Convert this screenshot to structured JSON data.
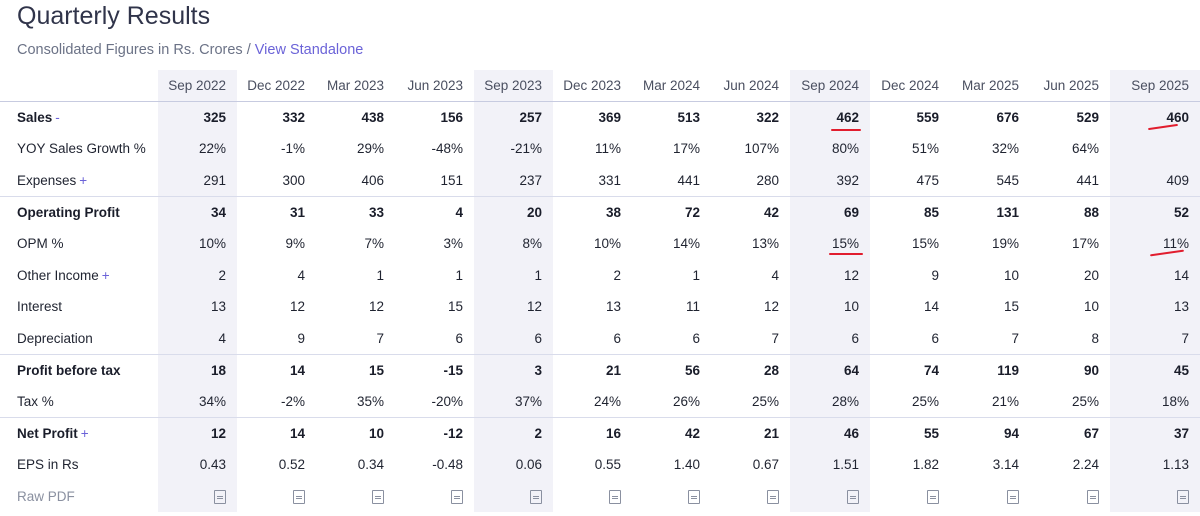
{
  "header": {
    "title": "Quarterly Results",
    "subtitle_text": "Consolidated Figures in Rs. Crores",
    "separator": "/",
    "link_label": "View Standalone"
  },
  "columns": [
    "Sep 2022",
    "Dec 2022",
    "Mar 2023",
    "Jun 2023",
    "Sep 2023",
    "Dec 2023",
    "Mar 2024",
    "Jun 2024",
    "Sep 2024",
    "Dec 2024",
    "Mar 2025",
    "Jun 2025",
    "Sep 2025"
  ],
  "rows": [
    {
      "label": "Sales",
      "toggle": "-",
      "strong": true,
      "values": [
        "325",
        "332",
        "438",
        "156",
        "257",
        "369",
        "513",
        "322",
        "462",
        "559",
        "676",
        "529",
        "460"
      ]
    },
    {
      "label": "YOY Sales Growth %",
      "toggle": "",
      "strong": false,
      "indent": true,
      "values": [
        "22%",
        "-1%",
        "29%",
        "-48%",
        "-21%",
        "11%",
        "17%",
        "107%",
        "80%",
        "51%",
        "32%",
        "64%",
        ""
      ]
    },
    {
      "label": "Expenses",
      "toggle": "+",
      "strong": false,
      "values": [
        "291",
        "300",
        "406",
        "151",
        "237",
        "331",
        "441",
        "280",
        "392",
        "475",
        "545",
        "441",
        "409"
      ]
    },
    {
      "label": "Operating Profit",
      "toggle": "",
      "strong": true,
      "values": [
        "34",
        "31",
        "33",
        "4",
        "20",
        "38",
        "72",
        "42",
        "69",
        "85",
        "131",
        "88",
        "52"
      ]
    },
    {
      "label": "OPM %",
      "toggle": "",
      "strong": false,
      "values": [
        "10%",
        "9%",
        "7%",
        "3%",
        "8%",
        "10%",
        "14%",
        "13%",
        "15%",
        "15%",
        "19%",
        "17%",
        "11%"
      ]
    },
    {
      "label": "Other Income",
      "toggle": "+",
      "strong": false,
      "values": [
        "2",
        "4",
        "1",
        "1",
        "1",
        "2",
        "1",
        "4",
        "12",
        "9",
        "10",
        "20",
        "14"
      ]
    },
    {
      "label": "Interest",
      "toggle": "",
      "strong": false,
      "values": [
        "13",
        "12",
        "12",
        "15",
        "12",
        "13",
        "11",
        "12",
        "10",
        "14",
        "15",
        "10",
        "13"
      ]
    },
    {
      "label": "Depreciation",
      "toggle": "",
      "strong": false,
      "values": [
        "4",
        "9",
        "7",
        "6",
        "6",
        "6",
        "6",
        "7",
        "6",
        "6",
        "7",
        "8",
        "7"
      ]
    },
    {
      "label": "Profit before tax",
      "toggle": "",
      "strong": true,
      "values": [
        "18",
        "14",
        "15",
        "-15",
        "3",
        "21",
        "56",
        "28",
        "64",
        "74",
        "119",
        "90",
        "45"
      ]
    },
    {
      "label": "Tax %",
      "toggle": "",
      "strong": false,
      "values": [
        "34%",
        "-2%",
        "35%",
        "-20%",
        "37%",
        "24%",
        "26%",
        "25%",
        "28%",
        "25%",
        "21%",
        "25%",
        "18%"
      ]
    },
    {
      "label": "Net Profit",
      "toggle": "+",
      "strong": true,
      "values": [
        "12",
        "14",
        "10",
        "-12",
        "2",
        "16",
        "42",
        "21",
        "46",
        "55",
        "94",
        "67",
        "37"
      ]
    },
    {
      "label": "EPS in Rs",
      "toggle": "",
      "strong": false,
      "values": [
        "0.43",
        "0.52",
        "0.34",
        "-0.48",
        "0.06",
        "0.55",
        "1.40",
        "0.67",
        "1.51",
        "1.82",
        "3.14",
        "2.24",
        "1.13"
      ]
    }
  ],
  "raw_pdf_label": "Raw PDF",
  "icons": {
    "pdf": "pdf-file-icon"
  },
  "colors": {
    "accent": "#6b63d8",
    "stripe": "#f2f2f8",
    "annotation": "#e11d2e"
  }
}
